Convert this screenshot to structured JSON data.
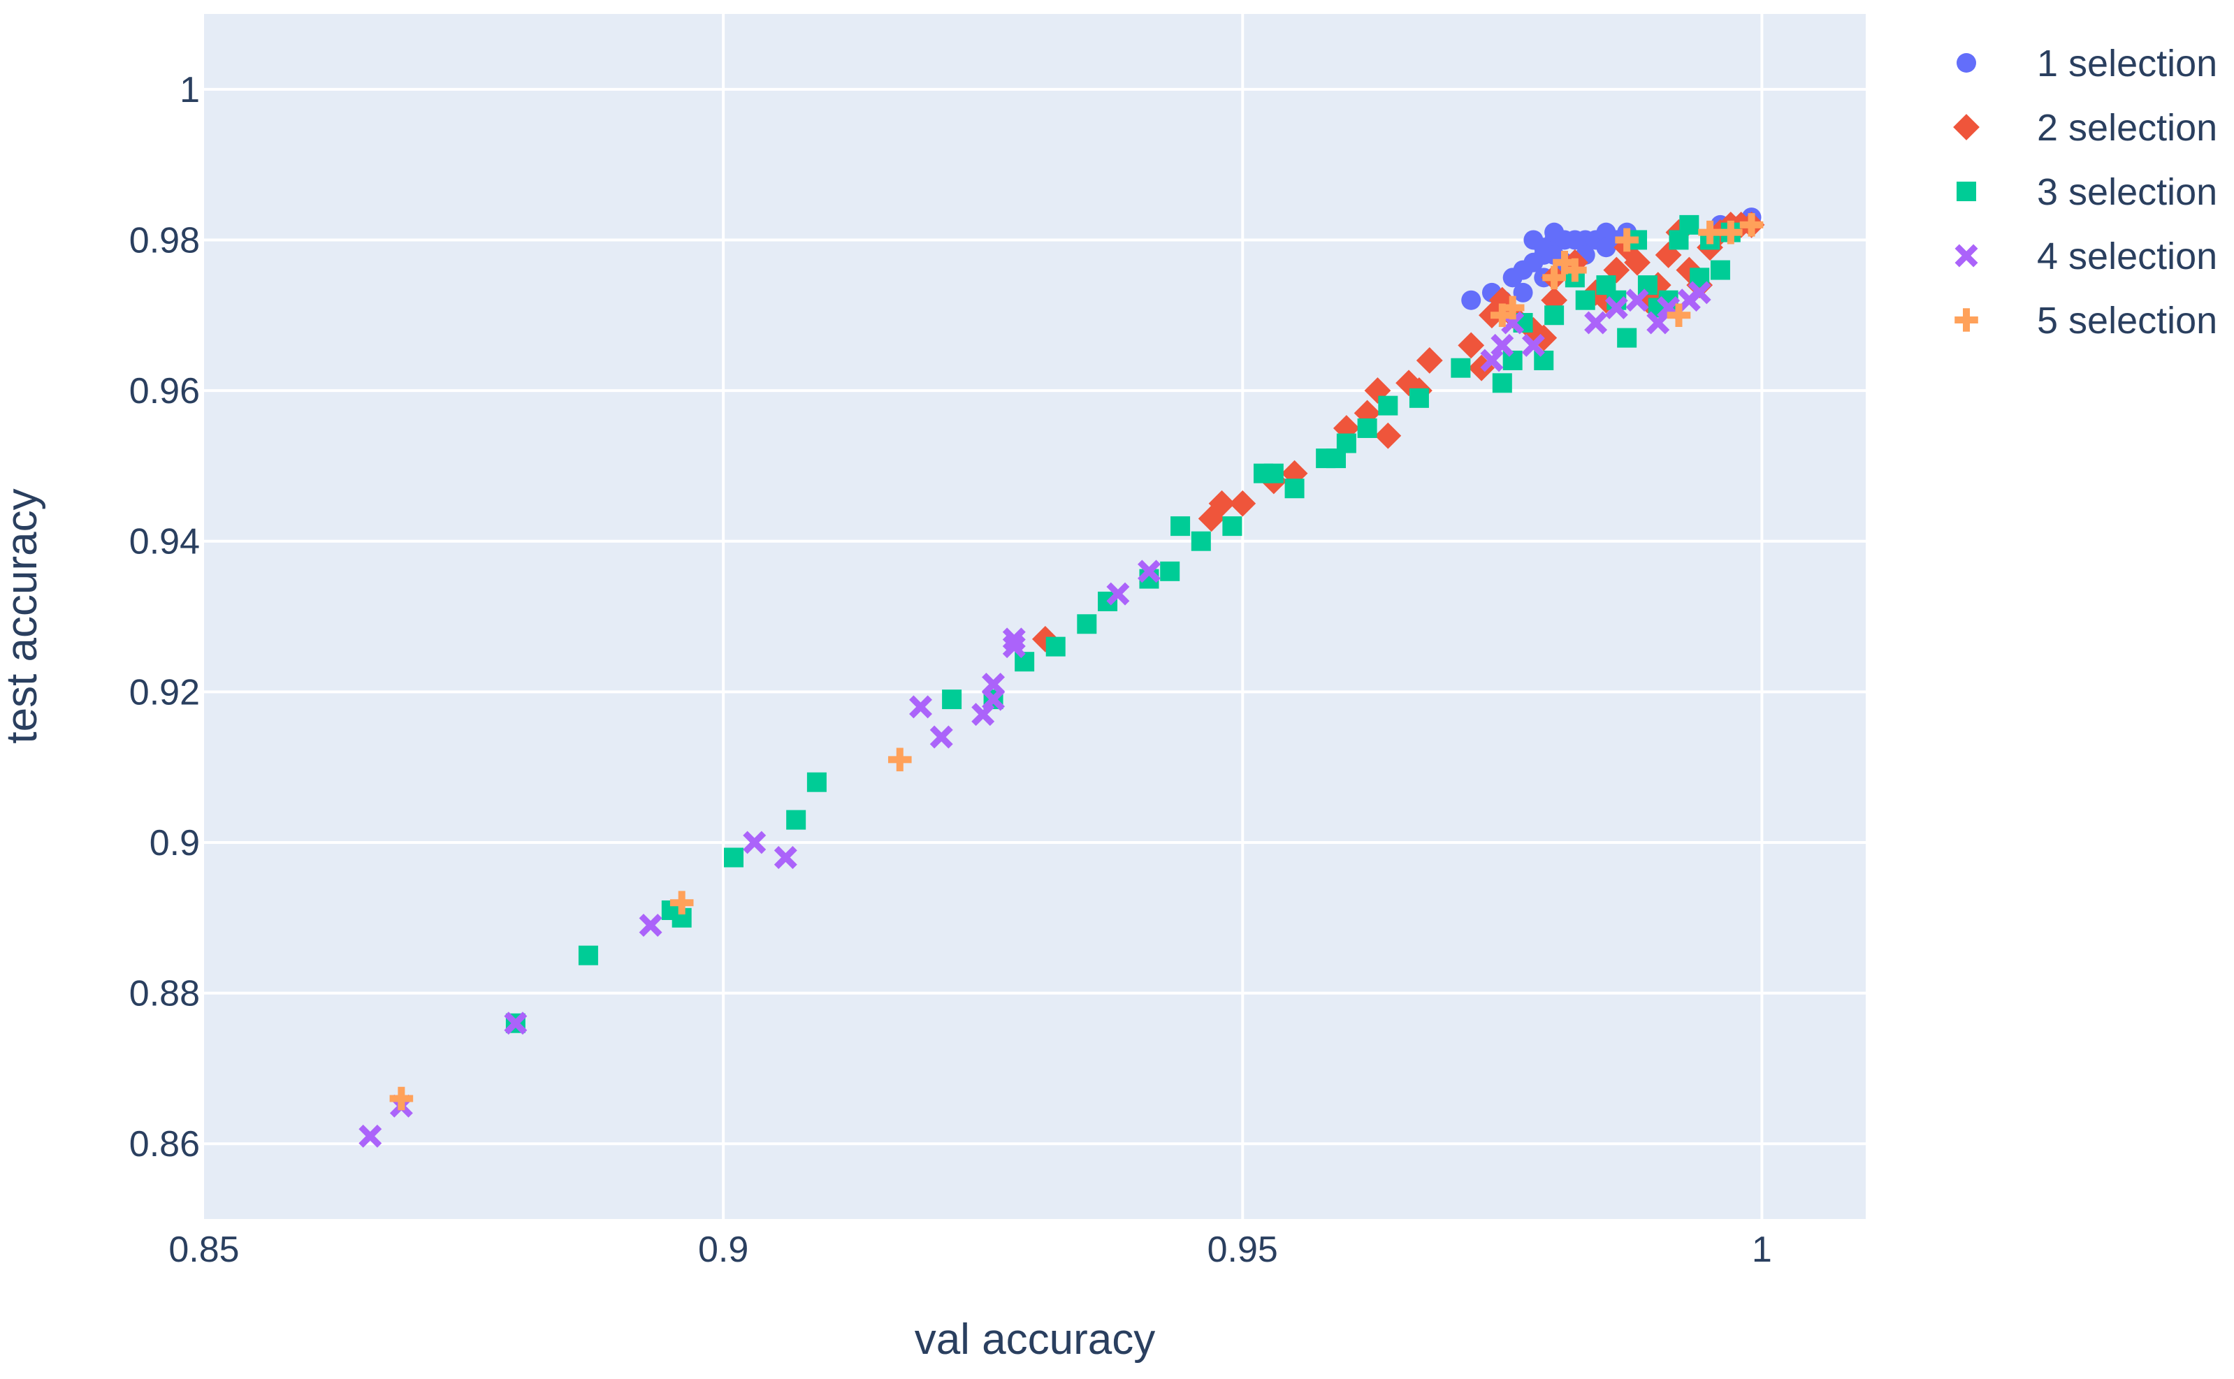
{
  "chart_data": {
    "type": "scatter",
    "xlabel": "val accuracy",
    "ylabel": "test accuracy",
    "xlim": [
      0.85,
      1.01
    ],
    "ylim": [
      0.85,
      1.01
    ],
    "x_ticks": [
      0.85,
      0.9,
      0.95,
      1
    ],
    "x_tick_labels": [
      "0.85",
      "0.9",
      "0.95",
      "1"
    ],
    "y_ticks": [
      0.86,
      0.88,
      0.9,
      0.92,
      0.94,
      0.96,
      0.98,
      1
    ],
    "y_tick_labels": [
      "0.86",
      "0.88",
      "0.9",
      "0.92",
      "0.94",
      "0.96",
      "0.98",
      "1"
    ],
    "grid": true,
    "plot_background": "#e5ecf6",
    "legend_position": "top-right",
    "series": [
      {
        "name": "1 selection",
        "marker": "circle",
        "color": "#636efa",
        "points": [
          [
            0.972,
            0.972
          ],
          [
            0.974,
            0.973
          ],
          [
            0.975,
            0.972
          ],
          [
            0.976,
            0.975
          ],
          [
            0.977,
            0.976
          ],
          [
            0.978,
            0.977
          ],
          [
            0.979,
            0.978
          ],
          [
            0.978,
            0.98
          ],
          [
            0.979,
            0.979
          ],
          [
            0.98,
            0.98
          ],
          [
            0.98,
            0.981
          ],
          [
            0.981,
            0.98
          ],
          [
            0.982,
            0.98
          ],
          [
            0.983,
            0.98
          ],
          [
            0.984,
            0.98
          ],
          [
            0.985,
            0.981
          ],
          [
            0.986,
            0.98
          ],
          [
            0.987,
            0.981
          ],
          [
            0.988,
            0.98
          ],
          [
            0.98,
            0.978
          ],
          [
            0.981,
            0.977
          ],
          [
            0.983,
            0.978
          ],
          [
            0.985,
            0.979
          ],
          [
            0.975,
            0.971
          ],
          [
            0.977,
            0.973
          ],
          [
            0.979,
            0.975
          ],
          [
            0.996,
            0.982
          ],
          [
            0.998,
            0.982
          ],
          [
            0.999,
            0.983
          ]
        ]
      },
      {
        "name": "2 selection",
        "marker": "diamond",
        "color": "#ef553b",
        "points": [
          [
            0.931,
            0.927
          ],
          [
            0.947,
            0.943
          ],
          [
            0.948,
            0.945
          ],
          [
            0.95,
            0.945
          ],
          [
            0.953,
            0.948
          ],
          [
            0.955,
            0.949
          ],
          [
            0.96,
            0.955
          ],
          [
            0.962,
            0.957
          ],
          [
            0.963,
            0.96
          ],
          [
            0.964,
            0.954
          ],
          [
            0.966,
            0.961
          ],
          [
            0.967,
            0.96
          ],
          [
            0.968,
            0.964
          ],
          [
            0.972,
            0.966
          ],
          [
            0.973,
            0.963
          ],
          [
            0.974,
            0.97
          ],
          [
            0.975,
            0.972
          ],
          [
            0.976,
            0.97
          ],
          [
            0.978,
            0.968
          ],
          [
            0.979,
            0.967
          ],
          [
            0.98,
            0.972
          ],
          [
            0.98,
            0.975
          ],
          [
            0.982,
            0.977
          ],
          [
            0.984,
            0.973
          ],
          [
            0.985,
            0.972
          ],
          [
            0.986,
            0.976
          ],
          [
            0.987,
            0.979
          ],
          [
            0.988,
            0.977
          ],
          [
            0.989,
            0.972
          ],
          [
            0.99,
            0.974
          ],
          [
            0.991,
            0.978
          ],
          [
            0.992,
            0.981
          ],
          [
            0.993,
            0.976
          ],
          [
            0.994,
            0.974
          ],
          [
            0.995,
            0.979
          ],
          [
            0.996,
            0.981
          ],
          [
            0.997,
            0.982
          ],
          [
            0.998,
            0.982
          ],
          [
            0.999,
            0.982
          ]
        ]
      },
      {
        "name": "3 selection",
        "marker": "square",
        "color": "#00cc96",
        "points": [
          [
            0.88,
            0.876
          ],
          [
            0.887,
            0.885
          ],
          [
            0.895,
            0.891
          ],
          [
            0.896,
            0.89
          ],
          [
            0.901,
            0.898
          ],
          [
            0.907,
            0.903
          ],
          [
            0.909,
            0.908
          ],
          [
            0.922,
            0.919
          ],
          [
            0.926,
            0.919
          ],
          [
            0.929,
            0.924
          ],
          [
            0.932,
            0.926
          ],
          [
            0.935,
            0.929
          ],
          [
            0.937,
            0.932
          ],
          [
            0.941,
            0.935
          ],
          [
            0.943,
            0.936
          ],
          [
            0.944,
            0.942
          ],
          [
            0.946,
            0.94
          ],
          [
            0.949,
            0.942
          ],
          [
            0.952,
            0.949
          ],
          [
            0.953,
            0.949
          ],
          [
            0.955,
            0.947
          ],
          [
            0.958,
            0.951
          ],
          [
            0.959,
            0.951
          ],
          [
            0.96,
            0.953
          ],
          [
            0.962,
            0.955
          ],
          [
            0.964,
            0.958
          ],
          [
            0.967,
            0.959
          ],
          [
            0.971,
            0.963
          ],
          [
            0.975,
            0.961
          ],
          [
            0.976,
            0.964
          ],
          [
            0.977,
            0.969
          ],
          [
            0.979,
            0.964
          ],
          [
            0.98,
            0.97
          ],
          [
            0.982,
            0.975
          ],
          [
            0.983,
            0.972
          ],
          [
            0.985,
            0.974
          ],
          [
            0.986,
            0.972
          ],
          [
            0.987,
            0.967
          ],
          [
            0.988,
            0.98
          ],
          [
            0.989,
            0.974
          ],
          [
            0.99,
            0.971
          ],
          [
            0.991,
            0.972
          ],
          [
            0.992,
            0.98
          ],
          [
            0.993,
            0.982
          ],
          [
            0.994,
            0.975
          ],
          [
            0.995,
            0.98
          ],
          [
            0.996,
            0.976
          ],
          [
            0.997,
            0.981
          ]
        ]
      },
      {
        "name": "4 selection",
        "marker": "x",
        "color": "#ab63fa",
        "points": [
          [
            0.866,
            0.861
          ],
          [
            0.869,
            0.865
          ],
          [
            0.88,
            0.876
          ],
          [
            0.893,
            0.889
          ],
          [
            0.903,
            0.9
          ],
          [
            0.906,
            0.898
          ],
          [
            0.919,
            0.918
          ],
          [
            0.921,
            0.914
          ],
          [
            0.925,
            0.917
          ],
          [
            0.926,
            0.919
          ],
          [
            0.926,
            0.921
          ],
          [
            0.928,
            0.926
          ],
          [
            0.928,
            0.927
          ],
          [
            0.938,
            0.933
          ],
          [
            0.941,
            0.936
          ],
          [
            0.974,
            0.964
          ],
          [
            0.975,
            0.966
          ],
          [
            0.976,
            0.969
          ],
          [
            0.978,
            0.966
          ],
          [
            0.984,
            0.969
          ],
          [
            0.986,
            0.971
          ],
          [
            0.988,
            0.972
          ],
          [
            0.99,
            0.969
          ],
          [
            0.991,
            0.971
          ],
          [
            0.993,
            0.972
          ],
          [
            0.994,
            0.973
          ]
        ]
      },
      {
        "name": "5 selection",
        "marker": "cross",
        "color": "#ffa15a",
        "points": [
          [
            0.869,
            0.866
          ],
          [
            0.896,
            0.892
          ],
          [
            0.917,
            0.911
          ],
          [
            0.975,
            0.97
          ],
          [
            0.976,
            0.971
          ],
          [
            0.98,
            0.975
          ],
          [
            0.981,
            0.977
          ],
          [
            0.982,
            0.976
          ],
          [
            0.987,
            0.98
          ],
          [
            0.992,
            0.97
          ],
          [
            0.995,
            0.981
          ],
          [
            0.997,
            0.981
          ],
          [
            0.999,
            0.982
          ]
        ]
      }
    ]
  }
}
